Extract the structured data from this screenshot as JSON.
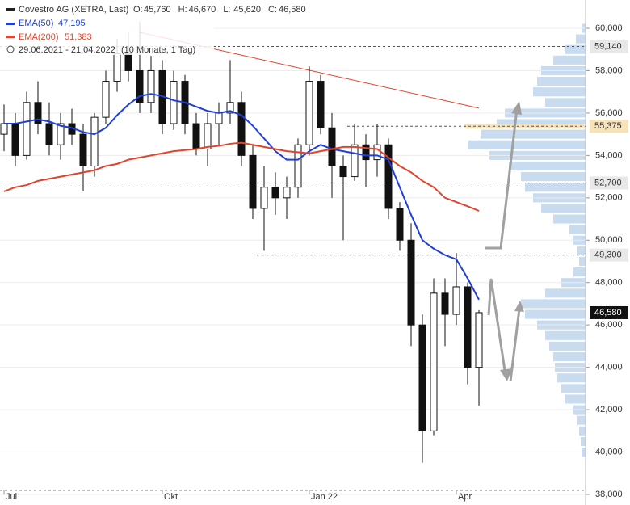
{
  "chart_data": {
    "type": "candlestick",
    "title": "Covestro AG (XETRA, Last)",
    "ohlc_labels": [
      {
        "key": "O:",
        "value": "45,760"
      },
      {
        "key": "H:",
        "value": "46,670"
      },
      {
        "key": "L:",
        "value": "45,620"
      },
      {
        "key": "C:",
        "value": "46,580"
      }
    ],
    "date_range": "29.06.2021 - 21.04.2022",
    "period": "(10 Monate, 1 Tag)",
    "categories": [
      "Jul",
      null,
      null,
      null,
      null,
      null,
      null,
      null,
      null,
      null,
      null,
      null,
      null,
      null,
      "Okt",
      null,
      null,
      null,
      null,
      null,
      null,
      null,
      null,
      null,
      null,
      null,
      null,
      "Jan 22",
      null,
      null,
      null,
      null,
      null,
      null,
      null,
      null,
      null,
      null,
      null,
      null,
      "Apr",
      null,
      null
    ],
    "open": [
      55000,
      55500,
      54000,
      56500,
      55500,
      54500,
      55500,
      55000,
      53500,
      55800,
      57500,
      58800,
      58000,
      56500,
      58000,
      55500,
      57500,
      55500,
      54300,
      55500,
      56000,
      56500,
      54000,
      51500,
      52500,
      52000,
      52500,
      54500,
      57500,
      55300,
      53500,
      53000,
      54500,
      53800,
      54500,
      51500,
      50000,
      46000,
      41000,
      47500,
      46500,
      47800,
      44000
    ],
    "high": [
      56400,
      56000,
      57000,
      57500,
      56500,
      56000,
      56200,
      55500,
      56000,
      58000,
      59500,
      59800,
      60300,
      58700,
      58500,
      58000,
      57800,
      56000,
      56000,
      56500,
      58500,
      57000,
      54500,
      53500,
      53200,
      53000,
      54800,
      58200,
      57800,
      56000,
      54000,
      55500,
      55000,
      55500,
      54800,
      51800,
      50800,
      46500,
      48200,
      48200,
      49400,
      48000,
      46700
    ],
    "low": [
      54200,
      53500,
      53800,
      55000,
      54000,
      53800,
      54500,
      52300,
      53000,
      55500,
      57000,
      57500,
      56000,
      56000,
      55000,
      55200,
      55000,
      54000,
      53500,
      54500,
      55500,
      53500,
      51000,
      49500,
      51200,
      51000,
      52000,
      54000,
      55000,
      52000,
      50000,
      52800,
      52500,
      53000,
      51000,
      49500,
      45000,
      39500,
      40800,
      45000,
      46000,
      43200,
      42200
    ],
    "close": [
      55500,
      54000,
      56500,
      55500,
      54500,
      55500,
      55000,
      53500,
      55800,
      57500,
      58800,
      58000,
      56500,
      58000,
      55500,
      57500,
      55500,
      54300,
      55500,
      56000,
      56500,
      54000,
      51500,
      52500,
      52000,
      52500,
      54500,
      57500,
      55300,
      53500,
      53000,
      54500,
      53800,
      54500,
      51500,
      50000,
      46000,
      41000,
      47500,
      46500,
      47800,
      44000,
      46580
    ],
    "series": [
      {
        "name": "EMA(50)",
        "last_label": "47,195",
        "color": "#1f3fd6",
        "values": [
          55500,
          55500,
          55600,
          55700,
          55600,
          55400,
          55300,
          55100,
          55000,
          55300,
          55900,
          56400,
          56800,
          56900,
          56800,
          56600,
          56500,
          56300,
          56100,
          56000,
          56100,
          55900,
          55400,
          54800,
          54200,
          53800,
          53800,
          54200,
          54500,
          54300,
          54200,
          54100,
          54000,
          54000,
          53800,
          52500,
          51200,
          50000,
          49600,
          49300,
          49100,
          48200,
          47195
        ]
      },
      {
        "name": "EMA(200)",
        "last_label": "51,383",
        "color": "#e0442c",
        "values": [
          52300,
          52500,
          52600,
          52800,
          52900,
          53000,
          53100,
          53200,
          53300,
          53500,
          53600,
          53800,
          53900,
          54000,
          54100,
          54200,
          54250,
          54300,
          54400,
          54450,
          54550,
          54600,
          54500,
          54400,
          54300,
          54200,
          54150,
          54100,
          54200,
          54300,
          54400,
          54400,
          54350,
          54300,
          53900,
          53500,
          53200,
          52800,
          52500,
          52000,
          51800,
          51600,
          51383
        ]
      }
    ],
    "trendline": {
      "color": "#e0442c",
      "start": [
        12,
        59810
      ],
      "end": [
        42,
        56230
      ]
    },
    "levels": [
      {
        "value": 59140,
        "label": "59,140"
      },
      {
        "value": 55375,
        "label": "55,375"
      },
      {
        "value": 52700,
        "label": "52,700"
      },
      {
        "value": 49300,
        "label": "49,300"
      }
    ],
    "last_price": {
      "value": 46580,
      "label": "46,580"
    },
    "volume_profile": {
      "prices": [
        60000,
        59500,
        59000,
        58500,
        58000,
        57500,
        57000,
        56500,
        56000,
        55500,
        55000,
        54500,
        54000,
        53500,
        53000,
        52500,
        52000,
        51500,
        51000,
        50500,
        50000,
        49500,
        49000,
        48500,
        48000,
        47500,
        47000,
        46500,
        46000,
        45500,
        45000,
        44500,
        44000,
        43500,
        43000,
        42500,
        42000,
        41500,
        41000,
        40500,
        40000
      ],
      "values": [
        5,
        12,
        25,
        40,
        55,
        60,
        65,
        50,
        100,
        110,
        130,
        145,
        120,
        95,
        80,
        75,
        65,
        55,
        40,
        20,
        15,
        10,
        8,
        15,
        30,
        50,
        80,
        75,
        60,
        50,
        45,
        40,
        38,
        35,
        30,
        25,
        15,
        10,
        8,
        6,
        5
      ],
      "color": "#c9dbef"
    },
    "ylim": [
      38000,
      60000
    ],
    "yticks": [
      {
        "value": 38000,
        "label": "38,000"
      },
      {
        "value": 40000,
        "label": "40,000"
      },
      {
        "value": 42000,
        "label": "42,000"
      },
      {
        "value": 44000,
        "label": "44,000"
      },
      {
        "value": 46000,
        "label": "46,000"
      },
      {
        "value": 48000,
        "label": "48,000"
      },
      {
        "value": 50000,
        "label": "50,000"
      },
      {
        "value": 52000,
        "label": "52,000"
      },
      {
        "value": 54000,
        "label": "54,000"
      },
      {
        "value": 56000,
        "label": "56,000"
      },
      {
        "value": 58000,
        "label": "58,000"
      },
      {
        "value": 60000,
        "label": "60,000"
      }
    ],
    "grid": true
  }
}
